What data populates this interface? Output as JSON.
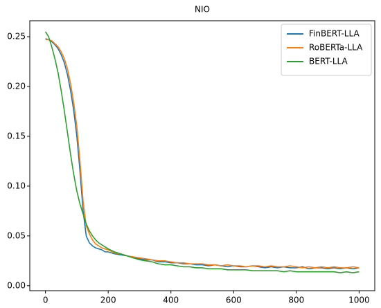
{
  "chart_data": {
    "type": "line",
    "title": "NIO",
    "x": [
      0,
      10,
      20,
      30,
      40,
      50,
      60,
      70,
      80,
      90,
      100,
      110,
      120,
      130,
      140,
      150,
      160,
      170,
      180,
      190,
      200,
      220,
      240,
      260,
      280,
      300,
      320,
      340,
      360,
      380,
      400,
      420,
      440,
      460,
      480,
      500,
      520,
      540,
      560,
      580,
      600,
      620,
      640,
      660,
      680,
      700,
      720,
      740,
      760,
      780,
      800,
      820,
      840,
      860,
      880,
      900,
      920,
      940,
      960,
      980,
      1000
    ],
    "series": [
      {
        "name": "FinBERT-LLA",
        "color": "#1f77b4",
        "values": [
          0.248,
          0.247,
          0.245,
          0.242,
          0.238,
          0.232,
          0.224,
          0.212,
          0.196,
          0.176,
          0.15,
          0.115,
          0.075,
          0.05,
          0.043,
          0.04,
          0.038,
          0.037,
          0.036,
          0.034,
          0.034,
          0.032,
          0.031,
          0.03,
          0.028,
          0.027,
          0.026,
          0.026,
          0.024,
          0.024,
          0.023,
          0.023,
          0.022,
          0.022,
          0.021,
          0.021,
          0.02,
          0.021,
          0.02,
          0.019,
          0.02,
          0.019,
          0.019,
          0.02,
          0.019,
          0.018,
          0.019,
          0.018,
          0.019,
          0.018,
          0.018,
          0.019,
          0.017,
          0.018,
          0.018,
          0.017,
          0.018,
          0.017,
          0.018,
          0.017,
          0.018
        ]
      },
      {
        "name": "RoBERTa-LLA",
        "color": "#ff7f0e",
        "values": [
          0.247,
          0.247,
          0.246,
          0.243,
          0.24,
          0.235,
          0.228,
          0.218,
          0.203,
          0.184,
          0.16,
          0.125,
          0.085,
          0.06,
          0.052,
          0.046,
          0.042,
          0.04,
          0.038,
          0.037,
          0.036,
          0.033,
          0.032,
          0.03,
          0.029,
          0.028,
          0.027,
          0.026,
          0.025,
          0.025,
          0.024,
          0.023,
          0.023,
          0.022,
          0.022,
          0.022,
          0.021,
          0.021,
          0.02,
          0.021,
          0.02,
          0.02,
          0.019,
          0.02,
          0.02,
          0.019,
          0.02,
          0.019,
          0.019,
          0.02,
          0.019,
          0.018,
          0.019,
          0.018,
          0.019,
          0.018,
          0.019,
          0.018,
          0.018,
          0.019,
          0.018
        ]
      },
      {
        "name": "BERT-LLA",
        "color": "#2ca02c",
        "values": [
          0.255,
          0.25,
          0.24,
          0.228,
          0.214,
          0.196,
          0.176,
          0.154,
          0.132,
          0.112,
          0.095,
          0.082,
          0.072,
          0.062,
          0.055,
          0.05,
          0.046,
          0.043,
          0.041,
          0.039,
          0.037,
          0.034,
          0.032,
          0.03,
          0.028,
          0.026,
          0.025,
          0.024,
          0.022,
          0.021,
          0.021,
          0.02,
          0.019,
          0.019,
          0.018,
          0.018,
          0.017,
          0.017,
          0.017,
          0.016,
          0.016,
          0.016,
          0.016,
          0.015,
          0.015,
          0.015,
          0.015,
          0.015,
          0.014,
          0.015,
          0.014,
          0.014,
          0.014,
          0.014,
          0.014,
          0.014,
          0.014,
          0.013,
          0.014,
          0.013,
          0.014
        ]
      }
    ],
    "xlim": [
      -50,
      1050
    ],
    "ylim": [
      -0.005,
      0.266
    ],
    "xticks": [
      0,
      200,
      400,
      600,
      800,
      1000
    ],
    "yticks": [
      {
        "value": 0,
        "label": "0.00"
      },
      0.05,
      {
        "value": 0.1,
        "label": "0.10"
      },
      0.15,
      {
        "value": 0.2,
        "label": "0.20"
      },
      0.25
    ],
    "legend": "upper right"
  }
}
